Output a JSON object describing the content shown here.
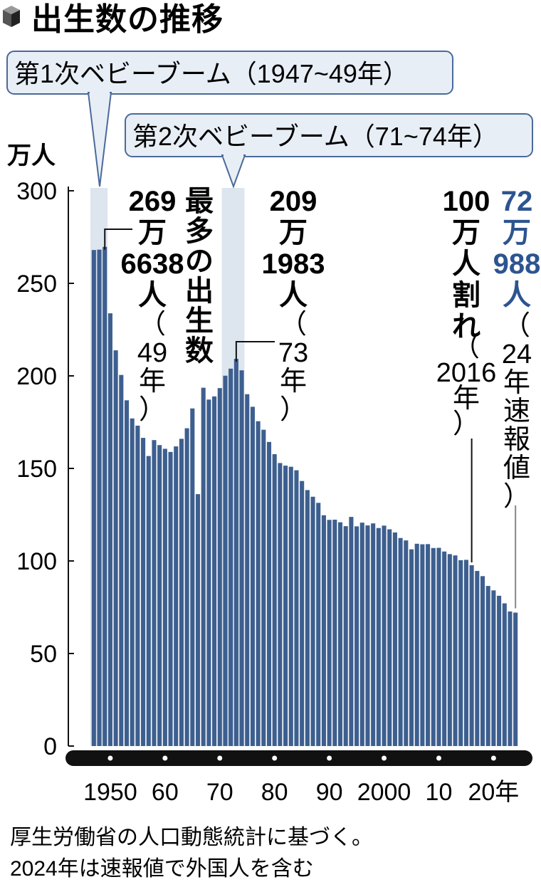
{
  "title": "出生数の推移",
  "unit_label": "万人",
  "booms": [
    {
      "label": "第1次ベビーブーム（1947~49年）",
      "start": 1947,
      "end": 1949
    },
    {
      "label": "第2次ベビーブーム（71~74年）",
      "start": 1971,
      "end": 1974
    }
  ],
  "annotations": {
    "max_value_lines": [
      "269",
      "万",
      "6638",
      "人"
    ],
    "max_year_lines": [
      "（",
      "49",
      "年",
      "）"
    ],
    "max_caption_lines": [
      "最",
      "多",
      "の",
      "出",
      "生",
      "数"
    ],
    "second_value_lines": [
      "209",
      "万",
      "1983",
      "人"
    ],
    "second_year_lines": [
      "（",
      "73",
      "年",
      "）"
    ],
    "million_lines": [
      "100",
      "万",
      "人",
      "割",
      "れ"
    ],
    "million_year_lines": [
      "（",
      "2016",
      "年",
      "）"
    ],
    "latest_value_lines": [
      "72",
      "万",
      "988",
      "人"
    ],
    "latest_note_lines": [
      "（",
      "24",
      "年",
      "速",
      "報",
      "値",
      "）"
    ]
  },
  "source_lines": [
    "厚生労働省の人口動態統計に基づく。",
    "2024年は速報値で外国人を含む"
  ],
  "colors": {
    "bar": "#3d5f8f",
    "boom_band": "#dde5ef",
    "accent_blue": "#2d5490",
    "axis_bar": "#111111"
  },
  "chart_data": {
    "type": "bar",
    "title": "出生数の推移",
    "ylabel": "万人",
    "xlabel": "",
    "ylim": [
      0,
      300
    ],
    "yticks": [
      0,
      50,
      100,
      150,
      200,
      250,
      300
    ],
    "xtick_labels": [
      {
        "year": 1950,
        "label": "1950"
      },
      {
        "year": 1960,
        "label": "60"
      },
      {
        "year": 1970,
        "label": "70"
      },
      {
        "year": 1980,
        "label": "80"
      },
      {
        "year": 1990,
        "label": "90"
      },
      {
        "year": 2000,
        "label": "2000"
      },
      {
        "year": 2010,
        "label": "10"
      },
      {
        "year": 2020,
        "label": "20年"
      }
    ],
    "grid": false,
    "x": [
      1947,
      1948,
      1949,
      1950,
      1951,
      1952,
      1953,
      1954,
      1955,
      1956,
      1957,
      1958,
      1959,
      1960,
      1961,
      1962,
      1963,
      1964,
      1965,
      1966,
      1967,
      1968,
      1969,
      1970,
      1971,
      1972,
      1973,
      1974,
      1975,
      1976,
      1977,
      1978,
      1979,
      1980,
      1981,
      1982,
      1983,
      1984,
      1985,
      1986,
      1987,
      1988,
      1989,
      1990,
      1991,
      1992,
      1993,
      1994,
      1995,
      1996,
      1997,
      1998,
      1999,
      2000,
      2001,
      2002,
      2003,
      2004,
      2005,
      2006,
      2007,
      2008,
      2009,
      2010,
      2011,
      2012,
      2013,
      2014,
      2015,
      2016,
      2017,
      2018,
      2019,
      2020,
      2021,
      2022,
      2023,
      2024
    ],
    "values": [
      268.0,
      268.2,
      269.7,
      233.8,
      213.8,
      200.5,
      186.8,
      177.0,
      173.1,
      166.5,
      156.7,
      165.3,
      162.6,
      160.6,
      158.9,
      161.9,
      166.0,
      171.7,
      182.4,
      136.1,
      193.6,
      187.2,
      188.9,
      193.4,
      200.1,
      203.9,
      209.2,
      203.0,
      190.1,
      183.3,
      175.5,
      170.9,
      164.3,
      157.7,
      152.9,
      151.5,
      150.9,
      149.0,
      143.2,
      138.3,
      134.7,
      131.4,
      124.7,
      122.2,
      122.3,
      120.9,
      118.8,
      123.8,
      118.7,
      120.7,
      119.2,
      120.3,
      117.8,
      119.1,
      117.1,
      115.4,
      112.4,
      111.1,
      106.3,
      109.3,
      109.0,
      109.1,
      107.0,
      107.1,
      105.1,
      103.7,
      103.0,
      100.4,
      100.6,
      97.7,
      94.6,
      91.8,
      86.5,
      84.1,
      81.2,
      77.1,
      72.7,
      72.1
    ]
  }
}
